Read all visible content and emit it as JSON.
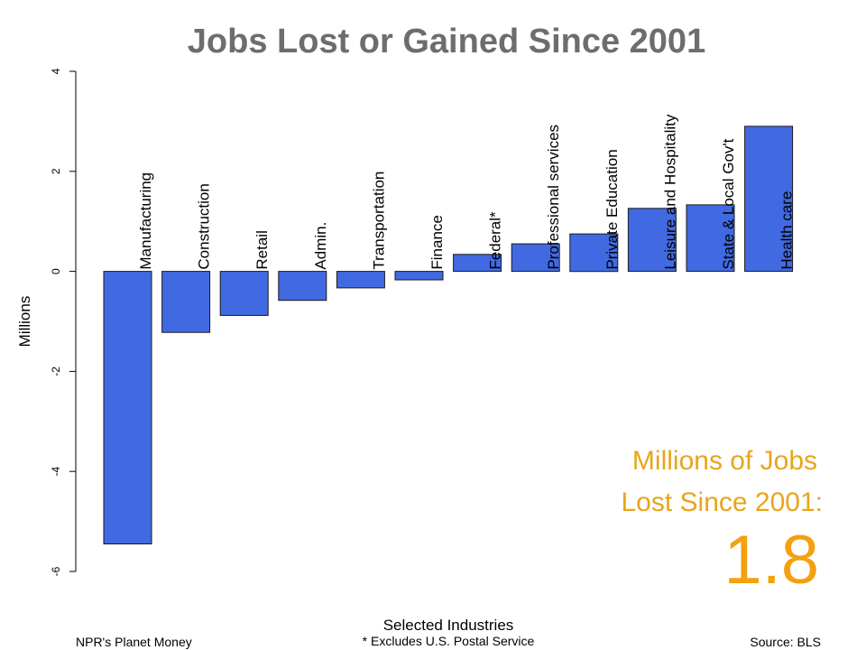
{
  "colors": {
    "bar": "#4169e1",
    "bar_stroke": "#1a1a1a",
    "title": "#6d6d6d",
    "callout": "#f5a00f"
  },
  "chart_data": {
    "type": "bar",
    "title": "Jobs Lost or Gained Since 2001",
    "xlabel": "Selected Industries",
    "ylabel": "Millions",
    "ylim": [
      -6,
      4
    ],
    "yticks": [
      4,
      2,
      0,
      -2,
      -4,
      -6
    ],
    "ytick_labels": [
      "4",
      "2",
      "0",
      "-2",
      "-4",
      "-6"
    ],
    "categories": [
      "Manufacturing",
      "Construction",
      "Retail",
      "Admin.",
      "Transportation",
      "Finance",
      "Federal*",
      "Professional services",
      "Private Education",
      "Leisure and Hospitality",
      "State & Local Gov't",
      "Health care"
    ],
    "values": [
      -5.45,
      -1.22,
      -0.88,
      -0.58,
      -0.33,
      -0.17,
      0.34,
      0.55,
      0.75,
      1.26,
      1.33,
      2.9
    ]
  },
  "callout": {
    "line1": "Millions of Jobs",
    "line2": "Lost Since 2001:",
    "value": "1.8"
  },
  "footer": {
    "left": "NPR's Planet Money",
    "center": "* Excludes U.S. Postal Service",
    "right": "Source: BLS"
  }
}
